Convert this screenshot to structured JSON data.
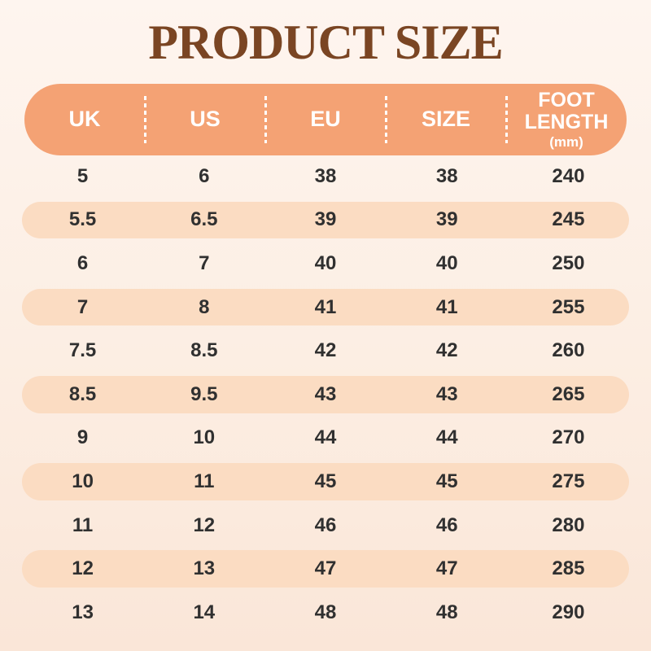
{
  "title": "PRODUCT SIZE",
  "table": {
    "headers": [
      {
        "label": "UK"
      },
      {
        "label": "US"
      },
      {
        "label": "EU"
      },
      {
        "label": "SIZE"
      },
      {
        "label": "FOOT LENGTH",
        "sub": "(mm)"
      }
    ],
    "rows": [
      [
        "5",
        "6",
        "38",
        "38",
        "240"
      ],
      [
        "5.5",
        "6.5",
        "39",
        "39",
        "245"
      ],
      [
        "6",
        "7",
        "40",
        "40",
        "250"
      ],
      [
        "7",
        "8",
        "41",
        "41",
        "255"
      ],
      [
        "7.5",
        "8.5",
        "42",
        "42",
        "260"
      ],
      [
        "8.5",
        "9.5",
        "43",
        "43",
        "265"
      ],
      [
        "9",
        "10",
        "44",
        "44",
        "270"
      ],
      [
        "10",
        "11",
        "45",
        "45",
        "275"
      ],
      [
        "11",
        "12",
        "46",
        "46",
        "280"
      ],
      [
        "12",
        "13",
        "47",
        "47",
        "285"
      ],
      [
        "13",
        "14",
        "48",
        "48",
        "290"
      ]
    ]
  },
  "colors": {
    "title_text": "#7A4523",
    "header_bg": "#F4A274",
    "header_text": "#FFFFFF",
    "row_highlight_bg": "#FBDCC2",
    "body_text": "#303030",
    "bg_top": "#FEF5EF",
    "bg_bottom": "#FAE6D8"
  },
  "chart_data": {
    "type": "table",
    "title": "PRODUCT SIZE",
    "columns": [
      "UK",
      "US",
      "EU",
      "SIZE",
      "FOOT LENGTH (mm)"
    ],
    "rows": [
      [
        "5",
        "6",
        "38",
        "38",
        "240"
      ],
      [
        "5.5",
        "6.5",
        "39",
        "39",
        "245"
      ],
      [
        "6",
        "7",
        "40",
        "40",
        "250"
      ],
      [
        "7",
        "8",
        "41",
        "41",
        "255"
      ],
      [
        "7.5",
        "8.5",
        "42",
        "42",
        "260"
      ],
      [
        "8.5",
        "9.5",
        "43",
        "43",
        "265"
      ],
      [
        "9",
        "10",
        "44",
        "44",
        "270"
      ],
      [
        "10",
        "11",
        "45",
        "45",
        "275"
      ],
      [
        "11",
        "12",
        "46",
        "46",
        "280"
      ],
      [
        "12",
        "13",
        "47",
        "47",
        "285"
      ],
      [
        "13",
        "14",
        "48",
        "48",
        "290"
      ]
    ],
    "layout": {
      "header_style": "orange pill with white dashed column separators",
      "row_striping": "alternate rows highlighted with light peach pill (rows 2,4,6,8,10)",
      "grid": "off"
    }
  }
}
